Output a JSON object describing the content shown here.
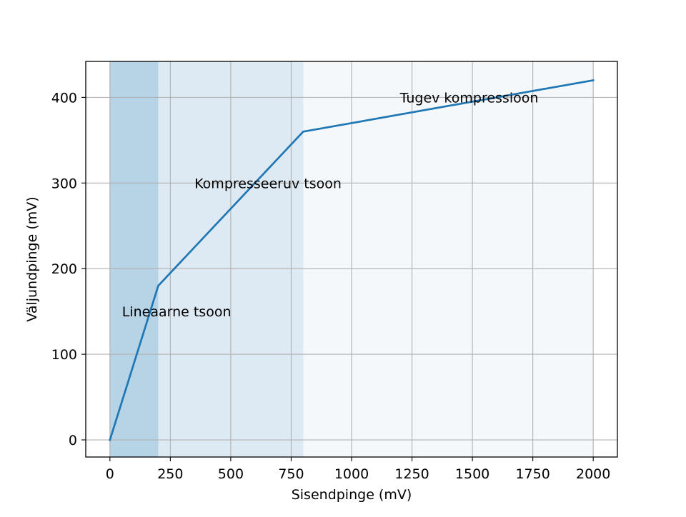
{
  "chart_data": {
    "type": "line",
    "title": "",
    "xlabel": "Sisendpinge (mV)",
    "ylabel": "Väljundpinge (mV)",
    "xlim": [
      -100,
      2100
    ],
    "ylim": [
      -20,
      442
    ],
    "grid": true,
    "x_ticks": [
      0,
      250,
      500,
      750,
      1000,
      1250,
      1500,
      1750,
      2000
    ],
    "y_ticks": [
      0,
      100,
      200,
      300,
      400
    ],
    "series": [
      {
        "x": [
          0,
          200,
          800,
          2000
        ],
        "y": [
          0,
          180,
          360,
          420
        ],
        "color": "#1f77b4"
      }
    ],
    "regions": [
      {
        "x_start": 0,
        "x_end": 200,
        "color": "#1f77b4",
        "opacity": 0.2
      },
      {
        "x_start": 0,
        "x_end": 800,
        "color": "#1f77b4",
        "opacity": 0.1
      },
      {
        "x_start": 0,
        "x_end": 2000,
        "color": "#1f77b4",
        "opacity": 0.05
      }
    ],
    "annotations": [
      {
        "text": "Lineaarne tsoon",
        "x": 50,
        "y": 150
      },
      {
        "text": "Kompresseeruv tsoon",
        "x": 350,
        "y": 300
      },
      {
        "text": "Tugev kompressioon",
        "x": 1200,
        "y": 400
      }
    ]
  }
}
